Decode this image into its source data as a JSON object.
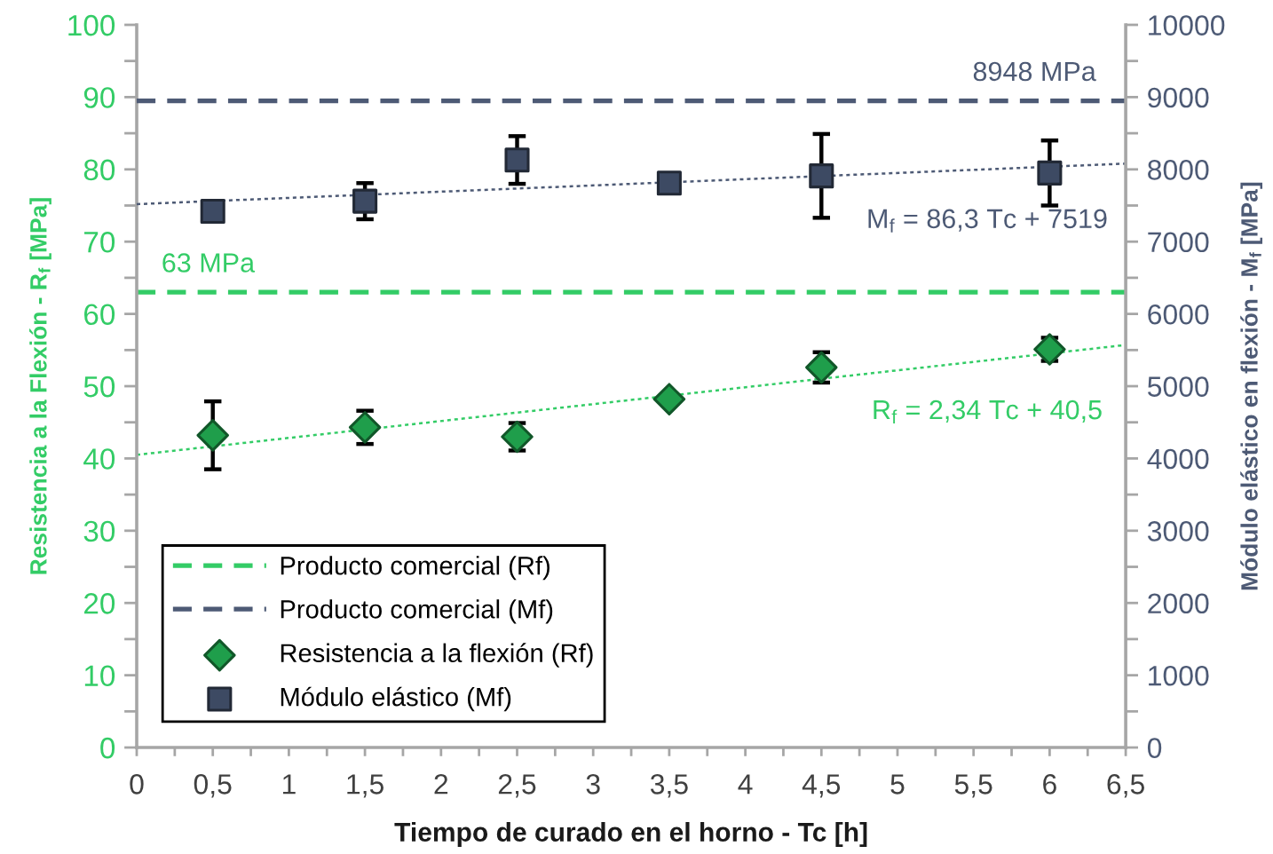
{
  "chart_data": {
    "type": "scatter",
    "xlabel": "Tiempo de curado en el horno - Tc [h]",
    "ylabel": "Resistencia a la Flexión - R$_{f}$ [MPa]",
    "y2label": "Módulo elástico en flexión - M$_{f}$ [MPa]",
    "xlim": [
      0,
      6.5
    ],
    "xticks": [
      0,
      {
        "value": 0.25,
        "label": null
      },
      {
        "value": 0.5,
        "label": "0,5"
      },
      {
        "value": 0.75,
        "label": null
      },
      1,
      {
        "value": 1.25,
        "label": null
      },
      {
        "value": 1.5,
        "label": "1,5"
      },
      {
        "value": 1.75,
        "label": null
      },
      2,
      {
        "value": 2.25,
        "label": null
      },
      {
        "value": 2.5,
        "label": "2,5"
      },
      {
        "value": 2.75,
        "label": null
      },
      3,
      {
        "value": 3.25,
        "label": null
      },
      {
        "value": 3.5,
        "label": "3,5"
      },
      {
        "value": 3.75,
        "label": null
      },
      4,
      {
        "value": 4.25,
        "label": null
      },
      {
        "value": 4.5,
        "label": "4,5"
      },
      {
        "value": 4.75,
        "label": null
      },
      5,
      {
        "value": 5.25,
        "label": null
      },
      {
        "value": 5.5,
        "label": "5,5"
      },
      {
        "value": 5.75,
        "label": null
      },
      6,
      {
        "value": 6.25,
        "label": null
      },
      {
        "value": 6.5,
        "label": "6,5"
      }
    ],
    "ylim": [
      0,
      100
    ],
    "yticks": [
      0,
      {
        "value": 5,
        "label": null
      },
      10,
      {
        "value": 15,
        "label": null
      },
      20,
      {
        "value": 25,
        "label": null
      },
      30,
      {
        "value": 35,
        "label": null
      },
      40,
      {
        "value": 45,
        "label": null
      },
      50,
      {
        "value": 55,
        "label": null
      },
      60,
      {
        "value": 65,
        "label": null
      },
      70,
      {
        "value": 75,
        "label": null
      },
      80,
      {
        "value": 85,
        "label": null
      },
      90,
      {
        "value": 95,
        "label": null
      },
      100
    ],
    "y2lim": [
      0,
      10000
    ],
    "y2ticks": [
      0,
      {
        "value": 500,
        "label": null
      },
      1000,
      {
        "value": 1500,
        "label": null
      },
      2000,
      {
        "value": 2500,
        "label": null
      },
      3000,
      {
        "value": 3500,
        "label": null
      },
      4000,
      {
        "value": 4500,
        "label": null
      },
      5000,
      {
        "value": 5500,
        "label": null
      },
      6000,
      {
        "value": 6500,
        "label": null
      },
      7000,
      {
        "value": 7500,
        "label": null
      },
      8000,
      {
        "value": 8500,
        "label": null
      },
      9000,
      {
        "value": 9500,
        "label": null
      },
      10000
    ],
    "grid": false,
    "legend": "bottom left",
    "series": [
      {
        "name": "Producto comercial (Rf)",
        "type": "line",
        "line_style": "dashed",
        "color": "#33cc66",
        "x": [
          0,
          6.5
        ],
        "values": [
          63,
          63
        ],
        "value_labels": [
          "63 MPa",
          null
        ]
      },
      {
        "name": "Producto comercial (Mf)",
        "type": "line",
        "axis": "y2",
        "line_style": "dashed",
        "color": "#4d5a75",
        "x": [
          0,
          6.5
        ],
        "values": [
          8948,
          8948
        ],
        "value_labels": [
          null,
          "8948 MPa"
        ]
      },
      {
        "name": "Resistencia a la flexión (Rf)",
        "marker": "diamond",
        "color": "#1f9e4b",
        "x": [
          0.5,
          1.5,
          2.5,
          3.5,
          4.5,
          6
        ],
        "values": [
          43.2,
          44.3,
          43.0,
          48.2,
          52.6,
          55.1
        ],
        "errors": [
          4.7,
          2.3,
          1.9,
          null,
          2.1,
          1.6
        ]
      },
      {
        "name": "Módulo elástico (Mf)",
        "axis": "y2",
        "marker": "square",
        "color": "#3d4a63",
        "x": [
          0.5,
          1.5,
          2.5,
          3.5,
          4.5,
          6
        ],
        "values": [
          7420,
          7560,
          8130,
          7810,
          7910,
          7950
        ],
        "errors": [
          140,
          250,
          330,
          80,
          580,
          450
        ]
      },
      {
        "name": "R$_{f}$ = 2,34 Tc + 40,5",
        "type": "line",
        "line_style": "dotted",
        "color": "#33cc66",
        "x": [
          0,
          6.5
        ],
        "values": [
          40.5,
          55.7
        ]
      },
      {
        "name": "M$_{f}$ = 86,3 Tc + 7519",
        "type": "line",
        "axis": "y2",
        "line_style": "dotted",
        "color": "#4d5a75",
        "x": [
          0,
          6.5
        ],
        "values": [
          7519,
          8080
        ]
      }
    ]
  }
}
